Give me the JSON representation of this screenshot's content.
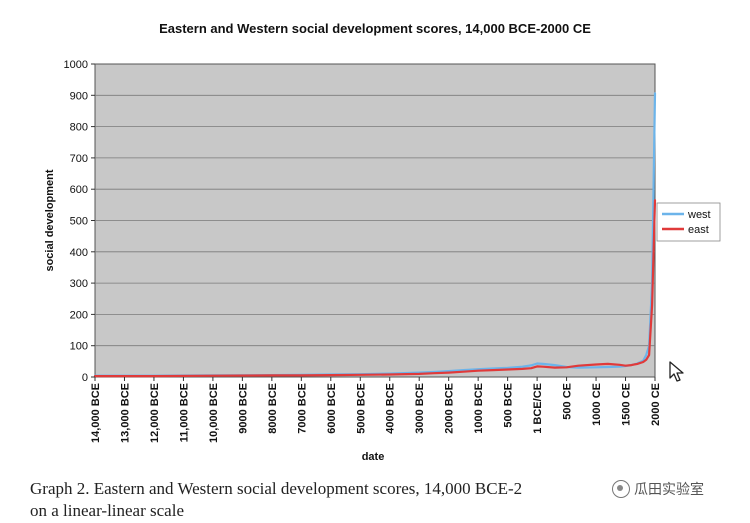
{
  "chart_data": {
    "type": "line",
    "title": "Eastern and Western social development scores, 14,000 BCE-2000 CE",
    "xlabel": "date",
    "ylabel": "social development",
    "ylim": [
      0,
      1000
    ],
    "yticks": [
      0,
      100,
      200,
      300,
      400,
      500,
      600,
      700,
      800,
      900,
      1000
    ],
    "xlim": [
      -14000,
      2000
    ],
    "xticks": [
      {
        "value": -14000,
        "label": "14,000 BCE"
      },
      {
        "value": -13000,
        "label": "13,000 BCE"
      },
      {
        "value": -12000,
        "label": "12,000 BCE"
      },
      {
        "value": -11000,
        "label": "11,000 BCE"
      },
      {
        "value": -10000,
        "label": "10,000 BCE"
      },
      {
        "value": -9000,
        "label": "9000 BCE"
      },
      {
        "value": -8000,
        "label": "8000 BCE"
      },
      {
        "value": -7000,
        "label": "7000 BCE"
      },
      {
        "value": -6000,
        "label": "6000 BCE"
      },
      {
        "value": -5000,
        "label": "5000 BCE"
      },
      {
        "value": -4000,
        "label": "4000 BCE"
      },
      {
        "value": -3000,
        "label": "3000 BCE"
      },
      {
        "value": -2000,
        "label": "2000 BCE"
      },
      {
        "value": -1000,
        "label": "1000 BCE"
      },
      {
        "value": -500,
        "label": "500 BCE"
      },
      {
        "value": 0,
        "label": "1 BCE/CE"
      },
      {
        "value": 500,
        "label": "500 CE"
      },
      {
        "value": 1000,
        "label": "1000 CE"
      },
      {
        "value": 1500,
        "label": "1500 CE"
      },
      {
        "value": 2000,
        "label": "2000 CE"
      }
    ],
    "legend": {
      "position": "right",
      "entries": [
        "west",
        "east"
      ]
    },
    "series": [
      {
        "name": "west",
        "color": "#6cb4ea",
        "x": [
          -14000,
          -12000,
          -10000,
          -8000,
          -7000,
          -6000,
          -5000,
          -4000,
          -3000,
          -2500,
          -2000,
          -1500,
          -1000,
          -750,
          -500,
          -250,
          -100,
          0,
          100,
          300,
          500,
          700,
          1000,
          1200,
          1400,
          1500,
          1600,
          1700,
          1800,
          1850,
          1900,
          1950,
          2000
        ],
        "y": [
          4,
          4,
          5,
          6,
          7,
          8,
          9,
          11,
          14,
          16,
          19,
          22,
          25,
          27,
          29,
          33,
          37,
          43,
          42,
          38,
          32,
          30,
          31,
          32,
          33,
          35,
          38,
          43,
          52,
          70,
          100,
          300,
          906
        ]
      },
      {
        "name": "east",
        "color": "#e03a3a",
        "x": [
          -14000,
          -12000,
          -10000,
          -8000,
          -7000,
          -6000,
          -5000,
          -4000,
          -3000,
          -2500,
          -2000,
          -1500,
          -1000,
          -750,
          -500,
          -250,
          -100,
          0,
          100,
          300,
          500,
          700,
          1000,
          1200,
          1400,
          1500,
          1600,
          1700,
          1800,
          1850,
          1900,
          1950,
          2000
        ],
        "y": [
          3,
          3,
          4,
          5,
          5,
          6,
          7,
          8,
          10,
          12,
          14,
          17,
          20,
          22,
          24,
          26,
          28,
          34,
          33,
          30,
          31,
          36,
          40,
          42,
          39,
          36,
          38,
          42,
          48,
          55,
          70,
          230,
          565
        ]
      }
    ]
  },
  "caption": {
    "line1": "Graph 2.  Eastern and Western social development scores, 14,000 BCE-2",
    "line2": "on a linear-linear scale"
  },
  "watermark": {
    "text": "瓜田实验室"
  },
  "colors": {
    "plot_bg": "#c8c8c8",
    "grid": "#7a7a7a",
    "frame": "#555555"
  }
}
